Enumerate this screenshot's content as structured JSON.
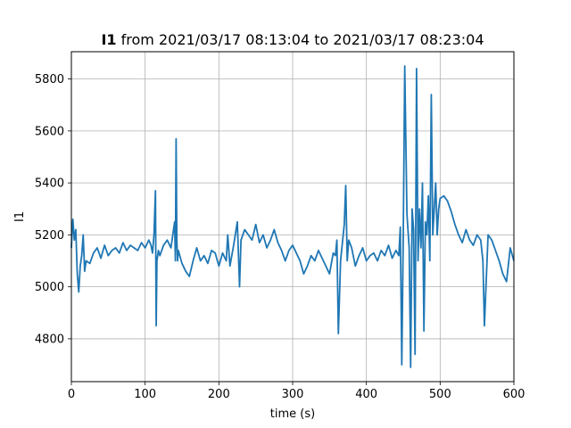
{
  "chart_data": {
    "type": "line",
    "title_bold": "I1",
    "title_rest": " from 2021/03/17 08:13:04 to 2021/03/17 08:23:04",
    "xlabel": "time (s)",
    "ylabel": "I1",
    "xlim": [
      0,
      600
    ],
    "ylim": [
      4635,
      5905
    ],
    "xticks": [
      0,
      100,
      200,
      300,
      400,
      500,
      600
    ],
    "yticks": [
      4800,
      5000,
      5200,
      5400,
      5600,
      5800
    ],
    "grid": true,
    "legend": "none",
    "line_color": "#1f77b4",
    "series": [
      {
        "x": [
          0,
          2,
          4,
          6,
          8,
          10,
          12,
          14,
          16,
          18,
          20,
          25,
          30,
          35,
          40,
          45,
          50,
          55,
          60,
          65,
          70,
          75,
          80,
          85,
          90,
          95,
          100,
          105,
          108,
          110,
          112,
          114,
          115,
          116,
          118,
          120,
          125,
          130,
          135,
          140,
          141,
          142,
          143,
          144,
          145,
          150,
          155,
          160,
          165,
          170,
          175,
          180,
          185,
          190,
          195,
          200,
          205,
          210,
          212,
          215,
          220,
          225,
          228,
          230,
          235,
          240,
          245,
          250,
          255,
          260,
          265,
          270,
          275,
          280,
          285,
          290,
          295,
          300,
          305,
          310,
          315,
          320,
          325,
          330,
          335,
          340,
          345,
          350,
          355,
          358,
          360,
          362,
          365,
          370,
          372,
          374,
          376,
          380,
          385,
          390,
          395,
          400,
          405,
          410,
          415,
          420,
          425,
          430,
          435,
          440,
          444,
          446,
          448,
          450,
          452,
          455,
          458,
          460,
          462,
          464,
          466,
          468,
          470,
          472,
          474,
          476,
          478,
          480,
          482,
          484,
          486,
          488,
          490,
          492,
          494,
          496,
          498,
          500,
          505,
          510,
          515,
          520,
          525,
          530,
          535,
          540,
          545,
          550,
          555,
          558,
          560,
          565,
          570,
          575,
          580,
          585,
          590,
          595,
          600
        ],
        "values": [
          5150,
          5260,
          5180,
          5220,
          5050,
          4980,
          5080,
          5120,
          5200,
          5060,
          5100,
          5090,
          5130,
          5150,
          5110,
          5160,
          5120,
          5140,
          5150,
          5130,
          5170,
          5140,
          5160,
          5150,
          5140,
          5170,
          5150,
          5180,
          5160,
          5130,
          5200,
          5370,
          4850,
          5100,
          5140,
          5120,
          5160,
          5180,
          5150,
          5250,
          5100,
          5570,
          5180,
          5100,
          5140,
          5090,
          5060,
          5040,
          5100,
          5150,
          5100,
          5120,
          5090,
          5140,
          5130,
          5080,
          5130,
          5100,
          5200,
          5080,
          5160,
          5250,
          5000,
          5180,
          5220,
          5200,
          5180,
          5240,
          5170,
          5200,
          5150,
          5180,
          5220,
          5170,
          5140,
          5100,
          5140,
          5160,
          5130,
          5100,
          5050,
          5080,
          5120,
          5100,
          5140,
          5110,
          5080,
          5050,
          5130,
          5120,
          5180,
          4820,
          5100,
          5240,
          5390,
          5100,
          5180,
          5150,
          5080,
          5120,
          5150,
          5100,
          5120,
          5130,
          5100,
          5140,
          5120,
          5160,
          5110,
          5140,
          5120,
          5230,
          4700,
          5200,
          5850,
          5280,
          5150,
          4690,
          5300,
          5220,
          4740,
          5840,
          5100,
          5300,
          5150,
          5400,
          4830,
          5250,
          5200,
          5350,
          5100,
          5740,
          5200,
          5300,
          5400,
          5200,
          5300,
          5340,
          5350,
          5330,
          5290,
          5240,
          5200,
          5170,
          5220,
          5180,
          5160,
          5200,
          5180,
          5100,
          4850,
          5200,
          5180,
          5140,
          5100,
          5050,
          5020,
          5150,
          5100
        ]
      }
    ]
  }
}
